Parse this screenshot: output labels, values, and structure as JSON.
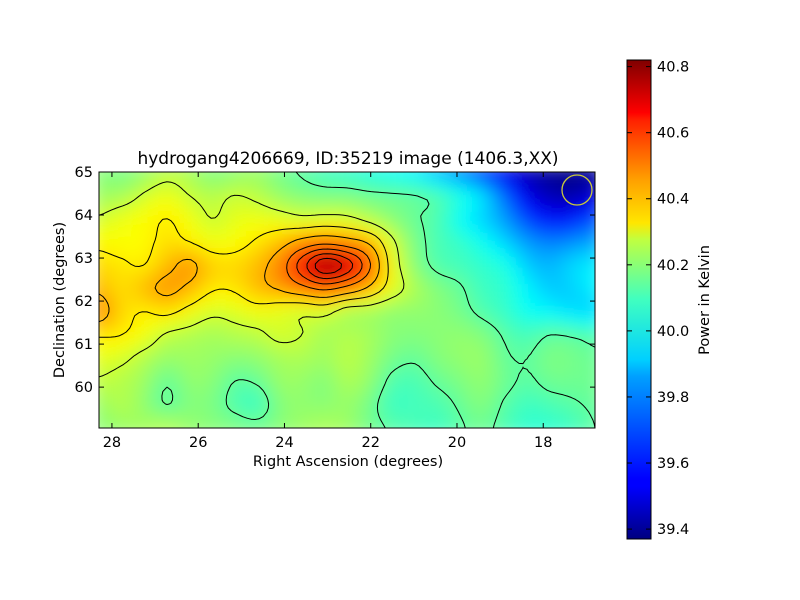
{
  "chart_data": {
    "type": "heatmap",
    "title": "hydrogang4206669, ID:35219 image (1406.3,XX)",
    "xlabel": "Right Ascension (degrees)",
    "ylabel": "Declination (degrees)",
    "colorbar_label": "Power in Kelvin",
    "x_range": [
      28.3,
      16.8
    ],
    "y_range": [
      59.05,
      65.0
    ],
    "x_ticks": [
      28,
      26,
      24,
      22,
      20,
      18
    ],
    "y_ticks": [
      60,
      61,
      62,
      63,
      64,
      65
    ],
    "color_range": [
      39.37,
      40.82
    ],
    "color_ticks": [
      39.4,
      39.6,
      39.8,
      40.0,
      40.2,
      40.4,
      40.6,
      40.8
    ],
    "colormap": "jet",
    "grid": false,
    "contour_levels": [
      40.05,
      40.2,
      40.3,
      40.4,
      40.5,
      40.58,
      40.66,
      40.73,
      40.79
    ],
    "values": [
      [
        40.11,
        40.13,
        40.15,
        40.18,
        40.13,
        40.11,
        40.1,
        40.08,
        40.11,
        40.14,
        40.16,
        40.14,
        40.08,
        40.04,
        40.02,
        40.0,
        40.04,
        40.07,
        40.02,
        39.98,
        39.98,
        40.0,
        40.05
      ],
      [
        40.13,
        40.17,
        40.12,
        40.05,
        40.1,
        40.09,
        40.03,
        40.0,
        40.1,
        40.12,
        40.11,
        40.13,
        40.08,
        40.0,
        40.01,
        40.02,
        40.06,
        40.1,
        40.04,
        40.0,
        40.02,
        40.04,
        40.06
      ],
      [
        40.19,
        40.17,
        40.14,
        40.06,
        40.12,
        40.11,
        40.05,
        40.06,
        40.13,
        40.13,
        40.1,
        40.16,
        40.12,
        40.03,
        40.02,
        40.06,
        40.09,
        40.12,
        40.07,
        40.04,
        40.07,
        40.07,
        40.07
      ],
      [
        40.24,
        40.22,
        40.17,
        40.13,
        40.14,
        40.13,
        40.11,
        40.12,
        40.15,
        40.16,
        40.14,
        40.18,
        40.14,
        40.08,
        40.06,
        40.1,
        40.12,
        40.13,
        40.06,
        40.05,
        40.09,
        40.08,
        40.06
      ],
      [
        40.31,
        40.3,
        40.26,
        40.19,
        40.17,
        40.15,
        40.17,
        40.18,
        40.22,
        40.2,
        40.15,
        40.17,
        40.15,
        40.11,
        40.1,
        40.11,
        40.12,
        40.1,
        40.04,
        40.01,
        40.05,
        40.04,
        40.02
      ],
      [
        40.45,
        40.33,
        40.3,
        40.32,
        40.27,
        40.22,
        40.23,
        40.26,
        40.24,
        40.22,
        40.23,
        40.16,
        40.15,
        40.12,
        40.12,
        40.11,
        40.08,
        40.03,
        39.99,
        39.93,
        39.91,
        39.87,
        39.86
      ],
      [
        40.38,
        40.32,
        40.37,
        40.42,
        40.38,
        40.31,
        40.31,
        40.37,
        40.41,
        40.47,
        40.52,
        40.47,
        40.38,
        40.25,
        40.16,
        40.1,
        40.06,
        40.0,
        39.98,
        39.9,
        39.84,
        39.85,
        39.9
      ],
      [
        40.33,
        40.31,
        40.3,
        40.37,
        40.42,
        40.34,
        40.33,
        40.37,
        40.45,
        40.62,
        40.78,
        40.7,
        40.51,
        40.26,
        40.11,
        40.03,
        40.01,
        39.98,
        39.95,
        39.84,
        39.81,
        39.86,
        39.89
      ],
      [
        40.28,
        40.27,
        40.28,
        40.32,
        40.3,
        40.26,
        40.27,
        40.31,
        40.36,
        40.43,
        40.47,
        40.44,
        40.38,
        40.22,
        40.09,
        40.02,
        39.99,
        39.93,
        39.85,
        39.77,
        39.73,
        39.75,
        39.79
      ],
      [
        40.21,
        40.25,
        40.27,
        40.3,
        40.26,
        40.2,
        40.24,
        40.25,
        40.24,
        40.22,
        40.23,
        40.22,
        40.17,
        40.11,
        40.06,
        40.02,
        39.92,
        39.85,
        39.77,
        39.64,
        39.56,
        39.58,
        39.66
      ],
      [
        40.14,
        40.15,
        40.21,
        40.25,
        40.2,
        40.17,
        40.2,
        40.18,
        40.13,
        40.1,
        40.09,
        40.09,
        40.07,
        40.06,
        40.05,
        40.02,
        39.95,
        39.87,
        39.69,
        39.52,
        39.45,
        39.43,
        39.49
      ],
      [
        40.11,
        40.08,
        40.12,
        40.17,
        40.15,
        40.09,
        40.11,
        40.13,
        40.08,
        40.04,
        40.0,
        39.98,
        39.95,
        39.92,
        39.89,
        39.81,
        39.74,
        39.63,
        39.52,
        39.45,
        39.4,
        39.38,
        39.41
      ]
    ]
  }
}
